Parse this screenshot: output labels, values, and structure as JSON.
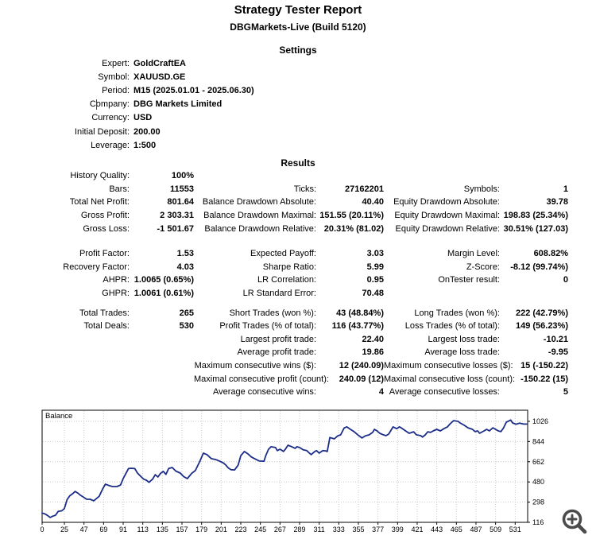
{
  "header": {
    "title": "Strategy Tester Report",
    "subtitle": "DBGMarkets-Live (Build 5120)"
  },
  "settings": {
    "heading": "Settings",
    "rows": [
      {
        "label": "Expert:",
        "value": "GoldCraftEA"
      },
      {
        "label": "Symbol:",
        "value": "XAUUSD.GE"
      },
      {
        "label": "Period:",
        "value": "M15 (2025.01.01 - 2025.06.30)"
      },
      {
        "label": "Company:",
        "value": "DBG Markets Limited"
      },
      {
        "label": "Currency:",
        "value": "USD"
      },
      {
        "label": "Initial Deposit:",
        "value": "200.00"
      },
      {
        "label": "Leverage:",
        "value": "1:500"
      }
    ]
  },
  "results": {
    "heading": "Results",
    "blocks": [
      {
        "rows": [
          [
            "History Quality:",
            "100%",
            "",
            "",
            "",
            ""
          ],
          [
            "Bars:",
            "11553",
            "Ticks:",
            "27162201",
            "Symbols:",
            "1"
          ],
          [
            "Total Net Profit:",
            "801.64",
            "Balance Drawdown Absolute:",
            "40.40",
            "Equity Drawdown Absolute:",
            "39.78"
          ],
          [
            "Gross Profit:",
            "2 303.31",
            "Balance Drawdown Maximal:",
            "151.55 (20.11%)",
            "Equity Drawdown Maximal:",
            "198.83 (25.34%)"
          ],
          [
            "Gross Loss:",
            "-1 501.67",
            "Balance Drawdown Relative:",
            "20.31% (81.02)",
            "Equity Drawdown Relative:",
            "30.51% (127.03)"
          ]
        ]
      },
      {
        "rows": [
          [
            "Profit Factor:",
            "1.53",
            "Expected Payoff:",
            "3.03",
            "Margin Level:",
            "608.82%"
          ],
          [
            "Recovery Factor:",
            "4.03",
            "Sharpe Ratio:",
            "5.99",
            "Z-Score:",
            "-8.12 (99.74%)"
          ],
          [
            "AHPR:",
            "1.0065 (0.65%)",
            "LR Correlation:",
            "0.95",
            "OnTester result:",
            "0"
          ],
          [
            "GHPR:",
            "1.0061 (0.61%)",
            "LR Standard Error:",
            "70.48",
            "",
            ""
          ]
        ]
      },
      {
        "rows": [
          [
            "Total Trades:",
            "265",
            "Short Trades (won %):",
            "43 (48.84%)",
            "Long Trades (won %):",
            "222 (42.79%)"
          ],
          [
            "Total Deals:",
            "530",
            "Profit Trades (% of total):",
            "116 (43.77%)",
            "Loss Trades (% of total):",
            "149 (56.23%)"
          ],
          [
            "",
            "",
            "Largest profit trade:",
            "22.40",
            "Largest loss trade:",
            "-10.21"
          ],
          [
            "",
            "",
            "Average profit trade:",
            "19.86",
            "Average loss trade:",
            "-9.95"
          ],
          [
            "",
            "",
            "Maximum consecutive wins ($):",
            "12 (240.09)",
            "Maximum consecutive losses ($):",
            "15 (-150.22)"
          ],
          [
            "",
            "",
            "Maximal consecutive profit (count):",
            "240.09 (12)",
            "Maximal consecutive loss (count):",
            "-150.22 (15)"
          ],
          [
            "",
            "",
            "Average consecutive wins:",
            "4",
            "Average consecutive losses:",
            "5"
          ]
        ]
      }
    ]
  },
  "chart_data": {
    "type": "line",
    "title": "Balance",
    "xlabel": "",
    "ylabel": "",
    "legend_position": "top-left",
    "grid": true,
    "line_color": "#1b2d87",
    "grid_color": "#c9c9c9",
    "border_color": "#000000",
    "x_ticks": [
      0,
      25,
      47,
      69,
      91,
      113,
      135,
      157,
      179,
      201,
      223,
      245,
      267,
      289,
      311,
      333,
      355,
      377,
      399,
      421,
      443,
      465,
      487,
      509,
      531
    ],
    "y_ticks": [
      116,
      298,
      480,
      662,
      844,
      1026
    ],
    "xlim": [
      0,
      545
    ],
    "ylim": [
      116,
      1126
    ],
    "series": [
      {
        "name": "Balance",
        "points": [
          [
            0,
            200
          ],
          [
            3,
            192
          ],
          [
            6,
            178
          ],
          [
            9,
            160
          ],
          [
            12,
            172
          ],
          [
            15,
            180
          ],
          [
            18,
            214
          ],
          [
            22,
            220
          ],
          [
            25,
            240
          ],
          [
            28,
            320
          ],
          [
            31,
            355
          ],
          [
            34,
            372
          ],
          [
            37,
            395
          ],
          [
            40,
            380
          ],
          [
            43,
            360
          ],
          [
            46,
            345
          ],
          [
            50,
            324
          ],
          [
            54,
            324
          ],
          [
            58,
            310
          ],
          [
            61,
            330
          ],
          [
            64,
            350
          ],
          [
            68,
            417
          ],
          [
            71,
            460
          ],
          [
            75,
            448
          ],
          [
            79,
            438
          ],
          [
            84,
            438
          ],
          [
            88,
            453
          ],
          [
            91,
            510
          ],
          [
            94,
            556
          ],
          [
            97,
            600
          ],
          [
            100,
            603
          ],
          [
            104,
            600
          ],
          [
            107,
            560
          ],
          [
            111,
            528
          ],
          [
            114,
            505
          ],
          [
            117,
            496
          ],
          [
            120,
            476
          ],
          [
            124,
            505
          ],
          [
            127,
            545
          ],
          [
            130,
            524
          ],
          [
            133,
            558
          ],
          [
            136,
            575
          ],
          [
            139,
            548
          ],
          [
            142,
            600
          ],
          [
            146,
            610
          ],
          [
            150,
            578
          ],
          [
            155,
            560
          ],
          [
            159,
            527
          ],
          [
            163,
            510
          ],
          [
            168,
            558
          ],
          [
            172,
            582
          ],
          [
            177,
            665
          ],
          [
            181,
            739
          ],
          [
            185,
            726
          ],
          [
            190,
            690
          ],
          [
            195,
            681
          ],
          [
            199,
            668
          ],
          [
            203,
            653
          ],
          [
            206,
            634
          ],
          [
            209,
            606
          ],
          [
            212,
            590
          ],
          [
            216,
            588
          ],
          [
            220,
            630
          ],
          [
            223,
            716
          ],
          [
            227,
            754
          ],
          [
            231,
            733
          ],
          [
            235,
            704
          ],
          [
            240,
            683
          ],
          [
            244,
            668
          ],
          [
            249,
            667
          ],
          [
            251,
            716
          ],
          [
            254,
            773
          ],
          [
            257,
            797
          ],
          [
            262,
            790
          ],
          [
            264,
            762
          ],
          [
            267,
            775
          ],
          [
            271,
            755
          ],
          [
            273,
            775
          ],
          [
            276,
            811
          ],
          [
            280,
            798
          ],
          [
            284,
            783
          ],
          [
            286,
            797
          ],
          [
            289,
            790
          ],
          [
            293,
            769
          ],
          [
            297,
            762
          ],
          [
            300,
            740
          ],
          [
            302,
            726
          ],
          [
            306,
            754
          ],
          [
            308,
            762
          ],
          [
            311,
            740
          ],
          [
            315,
            762
          ],
          [
            318,
            760
          ],
          [
            320,
            754
          ],
          [
            323,
            880
          ],
          [
            328,
            868
          ],
          [
            332,
            896
          ],
          [
            335,
            904
          ],
          [
            339,
            966
          ],
          [
            342,
            976
          ],
          [
            346,
            954
          ],
          [
            350,
            934
          ],
          [
            354,
            906
          ],
          [
            359,
            876
          ],
          [
            363,
            896
          ],
          [
            367,
            904
          ],
          [
            371,
            926
          ],
          [
            373,
            954
          ],
          [
            376,
            940
          ],
          [
            379,
            918
          ],
          [
            383,
            905
          ],
          [
            386,
            897
          ],
          [
            389,
            911
          ],
          [
            394,
            976
          ],
          [
            398,
            960
          ],
          [
            401,
            976
          ],
          [
            403,
            968
          ],
          [
            408,
            940
          ],
          [
            412,
            918
          ],
          [
            417,
            932
          ],
          [
            420,
            905
          ],
          [
            425,
            897
          ],
          [
            427,
            884
          ],
          [
            430,
            904
          ],
          [
            433,
            932
          ],
          [
            436,
            926
          ],
          [
            439,
            940
          ],
          [
            443,
            954
          ],
          [
            447,
            940
          ],
          [
            451,
            960
          ],
          [
            455,
            976
          ],
          [
            458,
            1004
          ],
          [
            462,
            1032
          ],
          [
            467,
            1026
          ],
          [
            469,
            1012
          ],
          [
            474,
            990
          ],
          [
            478,
            968
          ],
          [
            483,
            954
          ],
          [
            486,
            933
          ],
          [
            489,
            940
          ],
          [
            491,
            918
          ],
          [
            496,
            940
          ],
          [
            499,
            954
          ],
          [
            502,
            940
          ],
          [
            506,
            968
          ],
          [
            509,
            954
          ],
          [
            512,
            940
          ],
          [
            515,
            933
          ],
          [
            518,
            968
          ],
          [
            521,
            1018
          ],
          [
            526,
            1038
          ],
          [
            528,
            1012
          ],
          [
            532,
            1000
          ],
          [
            536,
            1010
          ],
          [
            540,
            1002
          ],
          [
            544,
            1001.64
          ]
        ]
      }
    ]
  },
  "zoom_button": {
    "icon_color": "#4b4b4b"
  }
}
